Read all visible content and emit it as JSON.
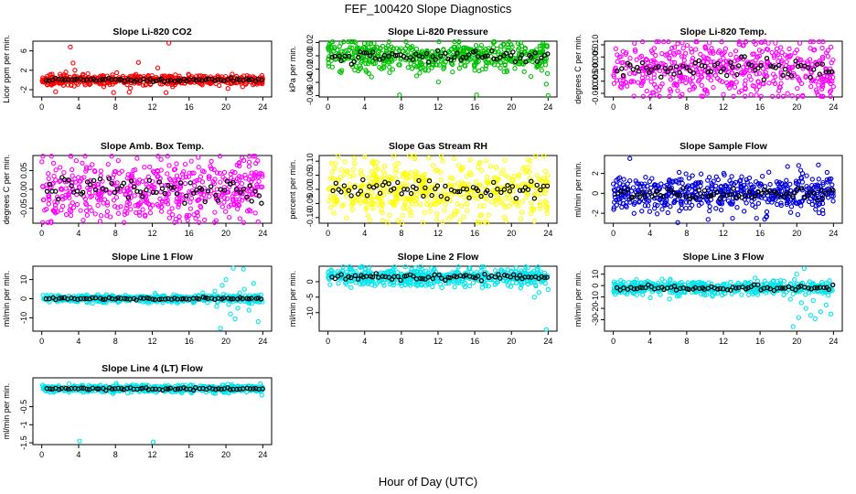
{
  "figure": {
    "title": "FEF_100420  Slope Diagnostics",
    "xlabel": "Hour of Day (UTC)"
  },
  "chart_data": [
    {
      "type": "scatter",
      "title": "Slope Li-820 CO2",
      "ylabel": "Licor ppm per min.",
      "xlim": [
        0,
        24
      ],
      "ylim": [
        -3.5,
        8
      ],
      "xticks": [
        0,
        4,
        8,
        12,
        16,
        20,
        24
      ],
      "yticks": [
        -2,
        2,
        6
      ],
      "center": 0,
      "spread": 0.5,
      "series": [
        {
          "name": "",
          "color": "#ff0000"
        },
        {
          "name": "",
          "color": "#000000"
        }
      ],
      "outliers": [
        [
          3.1,
          6.8
        ],
        [
          3.4,
          3.5
        ],
        [
          3.6,
          2.0
        ],
        [
          13.8,
          7.6
        ],
        [
          10.5,
          3.6
        ],
        [
          12.6,
          2.5
        ],
        [
          7.8,
          -2.6
        ],
        [
          9.5,
          -2.5
        ],
        [
          13.5,
          -2.6
        ],
        [
          1.5,
          -2.4
        ]
      ]
    },
    {
      "type": "scatter",
      "title": "Slope Li-820 Pressure",
      "ylabel": "kPa per min.",
      "xlim": [
        0,
        24
      ],
      "ylim": [
        -0.062,
        0.022
      ],
      "xticks": [
        0,
        4,
        8,
        12,
        16,
        20,
        24
      ],
      "yticks": [
        -0.06,
        -0.04,
        -0.02,
        0.0,
        0.02
      ],
      "ytick_labels": [
        "-0.06",
        "-0.04",
        "-0.02",
        "0.00",
        "0.02"
      ],
      "center": 0.0,
      "spread": 0.012,
      "series": [
        {
          "name": "",
          "color": "#00c000"
        },
        {
          "name": "",
          "color": "#000000"
        }
      ],
      "outliers": [
        [
          7.8,
          -0.059
        ],
        [
          16.2,
          -0.059
        ],
        [
          24.0,
          -0.06
        ],
        [
          1.5,
          -0.022
        ],
        [
          4.2,
          -0.024
        ]
      ]
    },
    {
      "type": "scatter",
      "title": "Slope Li-820 Temp.",
      "ylabel": "degrees C per min.",
      "xlim": [
        0,
        24
      ],
      "ylim": [
        -0.0115,
        0.0115
      ],
      "xticks": [
        0,
        4,
        8,
        12,
        16,
        20,
        24
      ],
      "yticks": [
        -0.01,
        -0.005,
        0.0,
        0.005,
        0.01
      ],
      "ytick_labels": [
        "-0.010",
        "-0.005",
        "0.000",
        "0.005",
        "0.010"
      ],
      "center": 0.0,
      "spread": 0.006,
      "series": [
        {
          "name": "",
          "color": "#ff00ff"
        },
        {
          "name": "",
          "color": "#000000"
        }
      ],
      "outliers": [
        [
          9.0,
          0.0115
        ],
        [
          16.2,
          0.011
        ],
        [
          19.5,
          -0.011
        ],
        [
          12.0,
          -0.0105
        ]
      ]
    },
    {
      "type": "scatter",
      "title": "Slope Amb. Box Temp.",
      "ylabel": "degrees C per min.",
      "xlim": [
        0,
        24
      ],
      "ylim": [
        -0.09,
        0.09
      ],
      "xticks": [
        0,
        4,
        8,
        12,
        16,
        20,
        24
      ],
      "yticks": [
        -0.05,
        0.0,
        0.05
      ],
      "ytick_labels": [
        "-0.05",
        "0.00",
        "0.05"
      ],
      "center": 0.0,
      "spread": 0.045,
      "series": [
        {
          "name": "",
          "color": "#ff00ff"
        },
        {
          "name": "",
          "color": "#000000"
        }
      ],
      "outliers": [
        [
          1.0,
          -0.085
        ],
        [
          4.5,
          -0.082
        ],
        [
          17.0,
          0.085
        ],
        [
          23.5,
          -0.086
        ]
      ]
    },
    {
      "type": "scatter",
      "title": "Slope Gas Stream RH",
      "ylabel": "percent per min.",
      "xlim": [
        0,
        24
      ],
      "ylim": [
        -0.12,
        0.12
      ],
      "xticks": [
        0,
        4,
        8,
        12,
        16,
        20,
        24
      ],
      "yticks": [
        -0.1,
        -0.05,
        0.0,
        0.05,
        0.1
      ],
      "ytick_labels": [
        "-0.10",
        "-0.05",
        "0.00",
        "0.05",
        "0.10"
      ],
      "center": 0.0,
      "spread": 0.05,
      "series": [
        {
          "name": "",
          "color": "#ffff00"
        },
        {
          "name": "",
          "color": "#000000"
        }
      ],
      "outliers": [
        [
          4.0,
          0.115
        ],
        [
          12.5,
          -0.115
        ],
        [
          6.0,
          -0.11
        ]
      ]
    },
    {
      "type": "scatter",
      "title": "Slope Sample Flow",
      "ylabel": "ml/min per min.",
      "xlim": [
        0,
        24
      ],
      "ylim": [
        -3,
        3.8
      ],
      "xticks": [
        0,
        4,
        8,
        12,
        16,
        20,
        24
      ],
      "yticks": [
        -2,
        0,
        2
      ],
      "center": 0,
      "spread": 0.9,
      "series": [
        {
          "name": "",
          "color": "#0000dd"
        },
        {
          "name": "",
          "color": "#000000"
        }
      ],
      "outliers": [
        [
          1.8,
          3.5
        ],
        [
          19.0,
          2.7
        ],
        [
          20.2,
          2.8
        ],
        [
          16.5,
          -2.6
        ],
        [
          13.0,
          -2.5
        ]
      ]
    },
    {
      "type": "scatter",
      "title": "Slope Line 1 Flow",
      "ylabel": "ml/min per min.",
      "xlim": [
        0,
        24
      ],
      "ylim": [
        -17,
        17
      ],
      "xticks": [
        0,
        4,
        8,
        12,
        16,
        20,
        24
      ],
      "yticks": [
        -10,
        0,
        10
      ],
      "center": 0,
      "spread": 0.9,
      "series": [
        {
          "name": "",
          "color": "#00e5ee"
        },
        {
          "name": "",
          "color": "#000000"
        }
      ],
      "outliers": [
        [
          19.4,
          -15.5
        ],
        [
          20.8,
          16.0
        ],
        [
          21.9,
          15.5
        ],
        [
          19.6,
          7.0
        ],
        [
          20.5,
          -8.0
        ],
        [
          21.0,
          -10.5
        ],
        [
          22.5,
          -6.0
        ],
        [
          23.5,
          -12.0
        ],
        [
          22.0,
          5.0
        ],
        [
          20.0,
          10.0
        ],
        [
          21.5,
          3.0
        ],
        [
          23.0,
          8.0
        ],
        [
          18.8,
          4.0
        ],
        [
          17.5,
          3.0
        ],
        [
          19.0,
          -4.0
        ],
        [
          20.3,
          -3.0
        ],
        [
          22.8,
          -2.5
        ],
        [
          23.8,
          2.0
        ],
        [
          21.3,
          -5.0
        ],
        [
          18.0,
          -2.0
        ]
      ]
    },
    {
      "type": "scatter",
      "title": "Slope Line 2 Flow",
      "ylabel": "ml/min per min.",
      "xlim": [
        0,
        24
      ],
      "ylim": [
        -16,
        5
      ],
      "xticks": [
        0,
        4,
        8,
        12,
        16,
        20,
        24
      ],
      "yticks": [
        -10,
        -5,
        0
      ],
      "center": 1.5,
      "spread": 1.5,
      "series": [
        {
          "name": "",
          "color": "#00e5ee"
        },
        {
          "name": "",
          "color": "#000000"
        }
      ],
      "outliers": [
        [
          23.8,
          -15.5
        ],
        [
          22.5,
          -5.0
        ],
        [
          23.0,
          -3.5
        ],
        [
          24.0,
          -2.5
        ],
        [
          21.0,
          -2.0
        ],
        [
          20.5,
          4.5
        ]
      ]
    },
    {
      "type": "scatter",
      "title": "Slope Line 3 Flow",
      "ylabel": "ml/min per min.",
      "xlim": [
        0,
        24
      ],
      "ylim": [
        -40,
        17
      ],
      "xticks": [
        0,
        4,
        8,
        12,
        16,
        20,
        24
      ],
      "yticks": [
        -30,
        -20,
        -10,
        0,
        10
      ],
      "center": -2,
      "spread": 3,
      "series": [
        {
          "name": "",
          "color": "#00e5ee"
        },
        {
          "name": "",
          "color": "#000000"
        }
      ],
      "outliers": [
        [
          19.6,
          -36
        ],
        [
          20.8,
          15
        ],
        [
          20.0,
          10
        ],
        [
          21.0,
          -20
        ],
        [
          21.5,
          -26
        ],
        [
          22.0,
          -29
        ],
        [
          22.6,
          -23
        ],
        [
          23.2,
          -17
        ],
        [
          23.7,
          -25
        ],
        [
          19.3,
          -12
        ],
        [
          20.5,
          -15
        ],
        [
          21.8,
          -13
        ],
        [
          20.2,
          -28
        ]
      ]
    },
    {
      "type": "scatter",
      "title": "Slope Line 4 (LT) Flow",
      "ylabel": "ml/min per min.",
      "xlim": [
        0,
        24
      ],
      "ylim": [
        -1.55,
        0.3
      ],
      "xticks": [
        0,
        4,
        8,
        12,
        16,
        20,
        24
      ],
      "yticks": [
        -1.5,
        -1.0,
        -0.5
      ],
      "center": 0.0,
      "spread": 0.05,
      "series": [
        {
          "name": "",
          "color": "#00e5ee"
        },
        {
          "name": "",
          "color": "#000000"
        }
      ],
      "outliers": [
        [
          4.1,
          -1.45
        ],
        [
          12.1,
          -1.48
        ],
        [
          19.7,
          0.1
        ],
        [
          20.3,
          -0.12
        ],
        [
          19.4,
          -0.03
        ]
      ]
    }
  ]
}
